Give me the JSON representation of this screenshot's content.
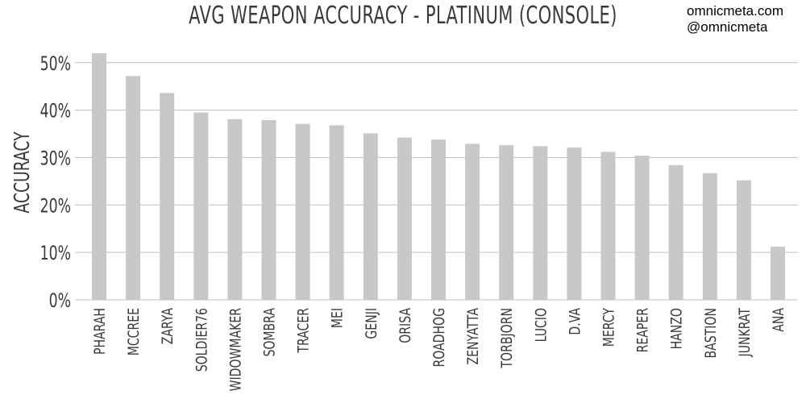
{
  "header": {
    "title": "AVG WEAPON ACCURACY - PLATINUM (CONSOLE)",
    "credit_site": "omnicmeta.com",
    "credit_handle": "@omnicmeta"
  },
  "chart_data": {
    "type": "bar",
    "title": "AVG WEAPON ACCURACY - PLATINUM (CONSOLE)",
    "xlabel": "",
    "ylabel": "ACCURACY",
    "ylim": [
      0,
      52
    ],
    "yticks": [
      0,
      10,
      20,
      30,
      40,
      50
    ],
    "ytick_labels": [
      "0%",
      "10%",
      "20%",
      "30%",
      "40%",
      "50%"
    ],
    "grid": true,
    "bar_color": "#c8c8c8",
    "grid_color": "#c0c0c0",
    "categories": [
      "PHARAH",
      "MCCREE",
      "ZARYA",
      "SOLDIER76",
      "WIDOWMAKER",
      "SOMBRA",
      "TRACER",
      "MEI",
      "GENJI",
      "ORISA",
      "ROADHOG",
      "ZENYATTA",
      "TORBJORN",
      "LUCIO",
      "D.VA",
      "MERCY",
      "REAPER",
      "HANZO",
      "BASTION",
      "JUNKRAT",
      "ANA"
    ],
    "values": [
      52.0,
      47.2,
      43.6,
      39.5,
      38.1,
      37.9,
      37.1,
      36.8,
      35.1,
      34.2,
      33.8,
      32.9,
      32.6,
      32.4,
      32.1,
      31.2,
      30.4,
      28.4,
      26.7,
      25.2,
      11.2
    ]
  }
}
